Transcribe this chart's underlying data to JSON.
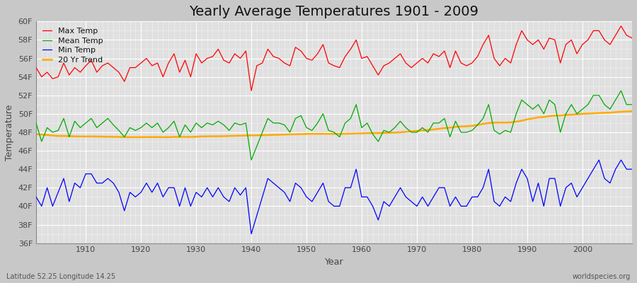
{
  "title": "Yearly Average Temperatures 1901 - 2009",
  "xlabel": "Year",
  "ylabel": "Temperature",
  "bottom_left": "Latitude 52.25 Longitude 14.25",
  "bottom_right": "worldspecies.org",
  "years": [
    1901,
    1902,
    1903,
    1904,
    1905,
    1906,
    1907,
    1908,
    1909,
    1910,
    1911,
    1912,
    1913,
    1914,
    1915,
    1916,
    1917,
    1918,
    1919,
    1920,
    1921,
    1922,
    1923,
    1924,
    1925,
    1926,
    1927,
    1928,
    1929,
    1930,
    1931,
    1932,
    1933,
    1934,
    1935,
    1936,
    1937,
    1938,
    1939,
    1940,
    1941,
    1942,
    1943,
    1944,
    1945,
    1946,
    1947,
    1948,
    1949,
    1950,
    1951,
    1952,
    1953,
    1954,
    1955,
    1956,
    1957,
    1958,
    1959,
    1960,
    1961,
    1962,
    1963,
    1964,
    1965,
    1966,
    1967,
    1968,
    1969,
    1970,
    1971,
    1972,
    1973,
    1974,
    1975,
    1976,
    1977,
    1978,
    1979,
    1980,
    1981,
    1982,
    1983,
    1984,
    1985,
    1986,
    1987,
    1988,
    1989,
    1990,
    1991,
    1992,
    1993,
    1994,
    1995,
    1996,
    1997,
    1998,
    1999,
    2000,
    2001,
    2002,
    2003,
    2004,
    2005,
    2006,
    2007,
    2008,
    2009
  ],
  "max_temp": [
    55.0,
    54.0,
    54.5,
    53.8,
    54.0,
    55.5,
    54.2,
    55.0,
    54.5,
    55.2,
    55.8,
    54.5,
    55.2,
    55.5,
    55.0,
    54.5,
    53.5,
    55.0,
    55.0,
    55.5,
    56.0,
    55.2,
    55.5,
    54.0,
    55.5,
    56.5,
    54.5,
    55.8,
    54.0,
    56.5,
    55.5,
    56.0,
    56.2,
    57.0,
    55.8,
    55.5,
    56.5,
    56.0,
    56.8,
    52.5,
    55.2,
    55.5,
    57.0,
    56.2,
    56.0,
    55.5,
    55.2,
    57.2,
    56.8,
    56.0,
    55.8,
    56.5,
    57.5,
    55.5,
    55.2,
    55.0,
    56.2,
    57.0,
    58.0,
    56.0,
    56.2,
    55.2,
    54.2,
    55.2,
    55.5,
    56.0,
    56.5,
    55.5,
    55.0,
    55.5,
    56.0,
    55.5,
    56.5,
    56.2,
    56.8,
    55.0,
    56.8,
    55.5,
    55.2,
    55.5,
    56.2,
    57.5,
    58.5,
    56.0,
    55.2,
    56.0,
    55.5,
    57.5,
    59.0,
    58.0,
    57.5,
    58.0,
    57.0,
    58.2,
    58.0,
    55.5,
    57.5,
    58.0,
    56.5,
    57.5,
    58.0,
    59.0,
    59.0,
    58.0,
    57.5,
    58.5,
    59.5,
    58.5,
    58.2
  ],
  "mean_temp": [
    49.0,
    47.0,
    48.5,
    48.0,
    48.2,
    49.5,
    47.5,
    49.2,
    48.5,
    49.0,
    49.5,
    48.5,
    49.0,
    49.5,
    48.8,
    48.2,
    47.5,
    48.5,
    48.2,
    48.5,
    49.0,
    48.5,
    49.0,
    48.0,
    48.5,
    49.2,
    47.5,
    48.8,
    48.0,
    49.0,
    48.5,
    49.0,
    48.8,
    49.2,
    48.8,
    48.2,
    49.0,
    48.8,
    49.0,
    45.0,
    46.5,
    48.0,
    49.5,
    49.0,
    49.0,
    48.8,
    48.0,
    49.5,
    49.8,
    48.5,
    48.2,
    49.0,
    50.0,
    48.2,
    48.0,
    47.5,
    49.0,
    49.5,
    51.0,
    48.5,
    49.0,
    47.8,
    47.0,
    48.2,
    48.0,
    48.5,
    49.2,
    48.5,
    48.0,
    48.0,
    48.5,
    48.0,
    49.0,
    49.0,
    49.5,
    47.5,
    49.2,
    48.0,
    48.0,
    48.2,
    48.8,
    49.5,
    51.0,
    48.2,
    47.8,
    48.2,
    48.0,
    50.0,
    51.5,
    51.0,
    50.5,
    51.0,
    50.0,
    51.5,
    51.0,
    48.0,
    50.0,
    51.0,
    50.0,
    50.5,
    51.0,
    52.0,
    52.0,
    51.0,
    50.5,
    51.5,
    52.5,
    51.0,
    51.0
  ],
  "min_temp": [
    41.0,
    40.0,
    42.0,
    40.0,
    41.5,
    43.0,
    40.5,
    42.5,
    42.0,
    43.5,
    43.5,
    42.5,
    42.5,
    43.0,
    42.5,
    41.5,
    39.5,
    41.5,
    41.0,
    41.5,
    42.5,
    41.5,
    42.5,
    41.0,
    42.0,
    42.0,
    40.0,
    42.0,
    40.0,
    41.5,
    41.0,
    42.0,
    41.0,
    42.0,
    41.0,
    40.5,
    42.0,
    41.2,
    42.0,
    37.0,
    39.0,
    41.0,
    43.0,
    42.5,
    42.0,
    41.5,
    40.5,
    42.5,
    42.0,
    41.0,
    40.5,
    41.5,
    42.5,
    40.5,
    40.0,
    40.0,
    42.0,
    42.0,
    44.0,
    41.0,
    41.0,
    40.0,
    38.5,
    40.5,
    40.0,
    41.0,
    42.0,
    41.0,
    40.5,
    40.0,
    41.0,
    40.0,
    41.0,
    42.0,
    42.0,
    40.0,
    41.0,
    40.0,
    40.0,
    41.0,
    41.0,
    42.0,
    44.0,
    40.5,
    40.0,
    41.0,
    40.5,
    42.5,
    44.0,
    43.0,
    40.5,
    42.5,
    40.0,
    43.0,
    43.0,
    40.0,
    42.0,
    42.5,
    41.0,
    42.0,
    43.0,
    44.0,
    45.0,
    43.0,
    42.5,
    44.0,
    45.0,
    44.0,
    44.0
  ],
  "trend": [
    47.8,
    47.75,
    47.7,
    47.65,
    47.6,
    47.6,
    47.58,
    47.56,
    47.55,
    47.55,
    47.55,
    47.54,
    47.53,
    47.52,
    47.51,
    47.5,
    47.48,
    47.47,
    47.47,
    47.47,
    47.48,
    47.48,
    47.48,
    47.47,
    47.47,
    47.5,
    47.5,
    47.5,
    47.5,
    47.52,
    47.55,
    47.56,
    47.57,
    47.57,
    47.58,
    47.6,
    47.62,
    47.63,
    47.65,
    47.66,
    47.67,
    47.68,
    47.7,
    47.72,
    47.73,
    47.75,
    47.77,
    47.78,
    47.8,
    47.82,
    47.83,
    47.83,
    47.83,
    47.83,
    47.83,
    47.83,
    47.84,
    47.85,
    47.87,
    47.88,
    47.9,
    47.91,
    47.91,
    47.93,
    47.95,
    47.97,
    48.0,
    48.05,
    48.1,
    48.15,
    48.2,
    48.25,
    48.3,
    48.38,
    48.45,
    48.5,
    48.58,
    48.63,
    48.65,
    48.7,
    48.8,
    48.9,
    49.0,
    49.05,
    49.05,
    49.05,
    49.07,
    49.15,
    49.25,
    49.4,
    49.5,
    49.62,
    49.65,
    49.75,
    49.8,
    49.82,
    49.88,
    49.9,
    49.95,
    50.0,
    50.02,
    50.05,
    50.08,
    50.1,
    50.12,
    50.18,
    50.22,
    50.25,
    50.28
  ],
  "max_color": "#ff0000",
  "mean_color": "#00aa00",
  "min_color": "#0000ff",
  "trend_color": "#ffaa00",
  "fig_bg_color": "#c8c8c8",
  "plot_bg_color": "#e0e0e0",
  "grid_color": "#ffffff",
  "ylim": [
    36,
    60
  ],
  "yticks": [
    36,
    38,
    40,
    42,
    44,
    46,
    48,
    50,
    52,
    54,
    56,
    58,
    60
  ],
  "xtick_years": [
    1910,
    1920,
    1930,
    1940,
    1950,
    1960,
    1970,
    1980,
    1990,
    2000
  ],
  "xlim": [
    1901,
    2009
  ],
  "title_fontsize": 14,
  "tick_fontsize": 8,
  "label_fontsize": 9,
  "legend_fontsize": 8,
  "annotation_fontsize": 7
}
